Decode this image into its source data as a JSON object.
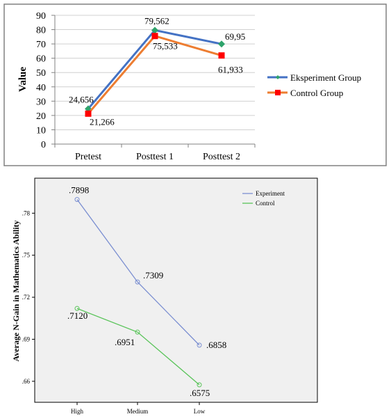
{
  "chart_data": [
    {
      "type": "line",
      "title": "",
      "xlabel": "",
      "ylabel": "Value",
      "categories": [
        "Pretest",
        "Posttest 1",
        "Posttest 2"
      ],
      "ylim": [
        0,
        90
      ],
      "yticks": [
        0,
        10,
        20,
        30,
        40,
        50,
        60,
        70,
        80,
        90
      ],
      "grid": true,
      "legend_position": "right",
      "series": [
        {
          "name": "Eksperiment Group",
          "values": [
            24.656,
            79.562,
            69.95
          ],
          "labels": [
            "24,656",
            "79,562",
            "69,95"
          ],
          "color": "#4472c4",
          "marker": "diamond",
          "marker_color": "#2ea36b"
        },
        {
          "name": "Control Group",
          "values": [
            21.266,
            75.533,
            61.933
          ],
          "labels": [
            "21,266",
            "75,533",
            "61,933"
          ],
          "color": "#ed7d31",
          "marker": "square",
          "marker_color": "#ff0000"
        }
      ]
    },
    {
      "type": "line",
      "title": "",
      "xlabel": "",
      "ylabel": "Average N-Gain in Mathematics Ability",
      "categories": [
        "High",
        "Medium",
        "Low"
      ],
      "ylim": [
        0.645,
        0.805
      ],
      "yticks": [
        0.66,
        0.69,
        0.72,
        0.75,
        0.78
      ],
      "ytick_labels": [
        ".66",
        ".69",
        ".72",
        ".75",
        ".78"
      ],
      "grid": false,
      "legend_position": "top-right",
      "series": [
        {
          "name": "Experiment",
          "values": [
            0.7898,
            0.7309,
            0.6858
          ],
          "labels": [
            ".7898",
            ".7309",
            ".6858"
          ],
          "color": "#7b8fd1",
          "marker": "circle"
        },
        {
          "name": "Control",
          "values": [
            0.712,
            0.6951,
            0.6575
          ],
          "labels": [
            ".7120",
            ".6951",
            ".6575"
          ],
          "color": "#59c459",
          "marker": "circle"
        }
      ]
    }
  ]
}
